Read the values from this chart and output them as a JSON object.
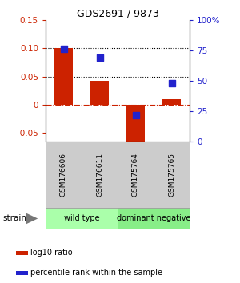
{
  "title": "GDS2691 / 9873",
  "samples": [
    "GSM176606",
    "GSM176611",
    "GSM175764",
    "GSM175765"
  ],
  "log10_ratio": [
    0.1,
    0.042,
    -0.065,
    0.01
  ],
  "percentile_rank": [
    0.76,
    0.69,
    0.22,
    0.48
  ],
  "ylim_left": [
    -0.065,
    0.15
  ],
  "ylim_right": [
    0.0,
    1.0
  ],
  "yticks_left": [
    -0.05,
    0.0,
    0.05,
    0.1,
    0.15
  ],
  "ytick_labels_left": [
    "-0.05",
    "0",
    "0.05",
    "0.10",
    "0.15"
  ],
  "yticks_right": [
    0.0,
    0.25,
    0.5,
    0.75,
    1.0
  ],
  "ytick_labels_right": [
    "0",
    "25",
    "50",
    "75",
    "100%"
  ],
  "hlines_dotted": [
    0.05,
    0.1
  ],
  "hline_dashdot_color": "#cc2200",
  "bar_color": "#cc2200",
  "dot_color": "#2222cc",
  "groups": [
    {
      "label": "wild type",
      "samples": [
        0,
        1
      ],
      "color": "#aaffaa"
    },
    {
      "label": "dominant negative",
      "samples": [
        2,
        3
      ],
      "color": "#88ee88"
    }
  ],
  "strain_label": "strain",
  "legend_bar_label": "log10 ratio",
  "legend_dot_label": "percentile rank within the sample",
  "bar_width": 0.5,
  "dot_size": 30
}
